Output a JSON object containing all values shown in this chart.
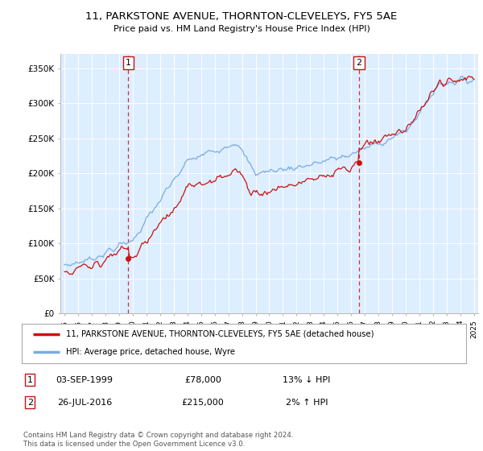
{
  "title": "11, PARKSTONE AVENUE, THORNTON-CLEVELEYS, FY5 5AE",
  "subtitle": "Price paid vs. HM Land Registry's House Price Index (HPI)",
  "legend_line1": "11, PARKSTONE AVENUE, THORNTON-CLEVELEYS, FY5 5AE (detached house)",
  "legend_line2": "HPI: Average price, detached house, Wyre",
  "annotation1_date": "03-SEP-1999",
  "annotation1_price": "£78,000",
  "annotation1_hpi": "13% ↓ HPI",
  "annotation2_date": "26-JUL-2016",
  "annotation2_price": "£215,000",
  "annotation2_hpi": "2% ↑ HPI",
  "footer": "Contains HM Land Registry data © Crown copyright and database right 2024.\nThis data is licensed under the Open Government Licence v3.0.",
  "hpi_color": "#7aace0",
  "price_color": "#cc1111",
  "annotation_color": "#cc1111",
  "background_color": "#ffffff",
  "chart_bg_color": "#ddeeff",
  "grid_color": "#ffffff",
  "ylim": [
    0,
    370000
  ],
  "yticks": [
    0,
    50000,
    100000,
    150000,
    200000,
    250000,
    300000,
    350000
  ],
  "sale1_year": 1999.67,
  "sale1_price": 78000,
  "sale2_year": 2016.57,
  "sale2_price": 215000
}
